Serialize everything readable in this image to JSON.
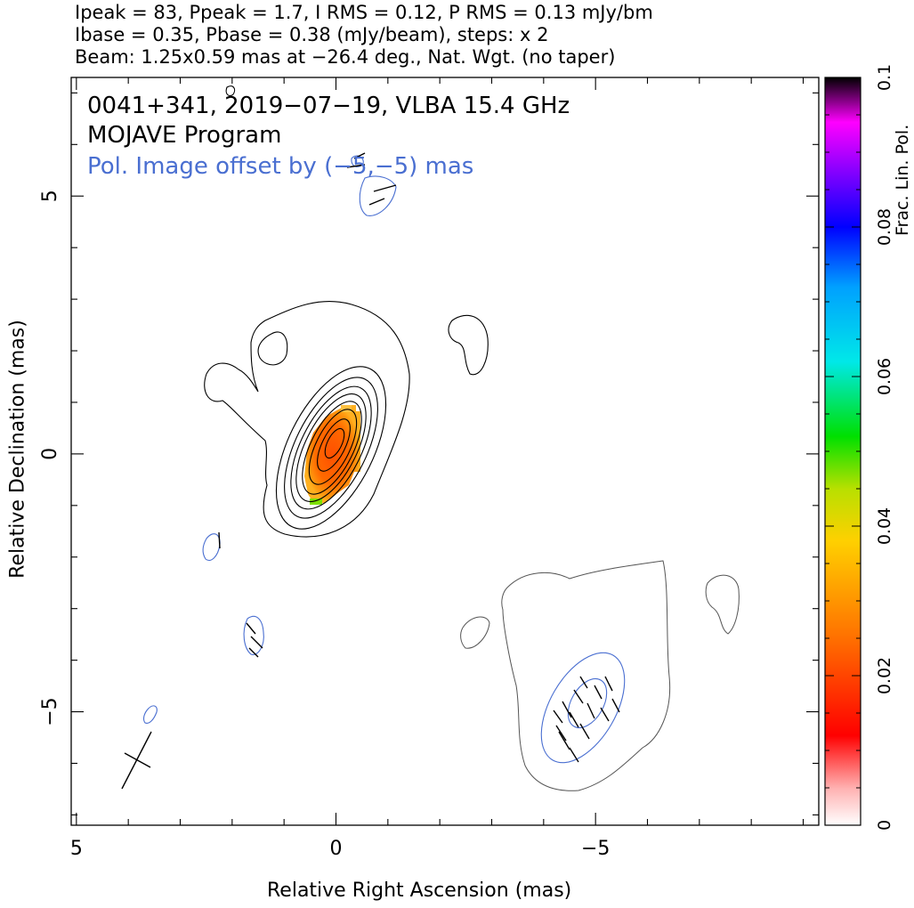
{
  "header": {
    "line1": "Ipeak = 83, Ppeak = 1.7, I RMS = 0.12, P RMS = 0.13 mJy/bm",
    "line2": "Ibase = 0.35, Pbase = 0.38 (mJy/beam), steps: x 2",
    "line3": "Beam: 1.25x0.59 mas at −26.4 deg., Nat. Wgt. (no taper)"
  },
  "chart_data": {
    "type": "contour-map",
    "annotations": {
      "source": "0041+341, 2019−07−19, VLBA 15.4 GHz",
      "program": "MOJAVE Program",
      "offset_note": "Pol. Image offset by (−5,−5) mas"
    },
    "xlabel": "Relative Right Ascension (mas)",
    "ylabel": "Relative Declination (mas)",
    "xlim": [
      5.1,
      -9.3
    ],
    "ylim": [
      -7.2,
      7.3
    ],
    "x_ticks": [
      5,
      0,
      -5
    ],
    "x_tick_labels": [
      "5",
      "0",
      "−5"
    ],
    "y_ticks": [
      5,
      0,
      -5
    ],
    "y_tick_labels": [
      "5",
      "0",
      "−5"
    ],
    "grid": false,
    "beam": {
      "major_mas": 1.25,
      "minor_mas": 0.59,
      "pa_deg": -26.4,
      "center": [
        3.8,
        -6.1
      ]
    },
    "colorbar": {
      "label": "Frac. Lin. Pol.",
      "range": [
        0,
        0.1
      ],
      "ticks": [
        0,
        0.02,
        0.04,
        0.06,
        0.08,
        0.1
      ],
      "tick_labels": [
        "0",
        "0.02",
        "0.04",
        "0.06",
        "0.08",
        "0.1"
      ]
    },
    "contour_levels_mJy": [
      0.35,
      0.7,
      1.4,
      2.8,
      5.6,
      11.2,
      22.4,
      44.8
    ],
    "core": {
      "x": 0.0,
      "y": 0.0,
      "frac_pol_peak": 0.025
    },
    "pol_regions": [
      {
        "x": -4.9,
        "y": -5.2,
        "note": "main polarized component (offset)"
      },
      {
        "x": -0.8,
        "y": 5.0
      },
      {
        "x": 2.3,
        "y": -1.8
      },
      {
        "x": 1.5,
        "y": -3.6
      },
      {
        "x": 3.5,
        "y": -5.0
      }
    ],
    "colors": {
      "contour": "#000000",
      "pol_contour": "#4a6fd1",
      "offset_text": "#4a6fd1"
    }
  }
}
